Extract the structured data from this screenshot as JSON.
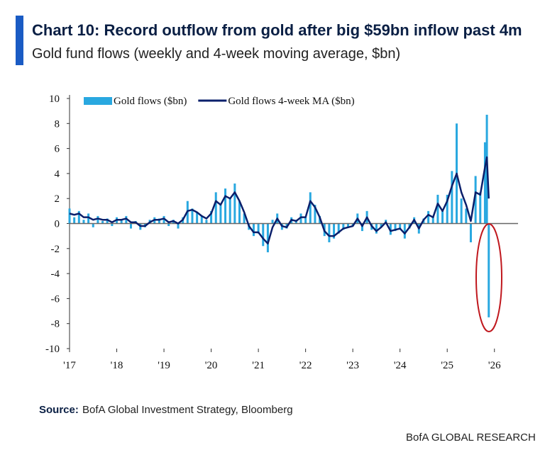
{
  "chart_data": {
    "type": "bar_line",
    "title": "Chart 10: Record outflow from gold after big $59bn inflow past 4m",
    "subtitle": "Gold fund flows (weekly and 4-week moving average, $bn)",
    "source_label": "Source:",
    "source": "BofA Global Investment Strategy, Bloomberg",
    "footer": "BofA GLOBAL RESEARCH",
    "x": [
      2017.0,
      2017.1,
      2017.2,
      2017.3,
      2017.4,
      2017.5,
      2017.6,
      2017.7,
      2017.8,
      2017.9,
      2018.0,
      2018.1,
      2018.2,
      2018.3,
      2018.4,
      2018.5,
      2018.6,
      2018.7,
      2018.8,
      2018.9,
      2019.0,
      2019.1,
      2019.2,
      2019.3,
      2019.4,
      2019.5,
      2019.6,
      2019.7,
      2019.8,
      2019.9,
      2020.0,
      2020.1,
      2020.2,
      2020.3,
      2020.4,
      2020.5,
      2020.6,
      2020.7,
      2020.8,
      2020.9,
      2021.0,
      2021.1,
      2021.2,
      2021.3,
      2021.4,
      2021.5,
      2021.6,
      2021.7,
      2021.8,
      2021.9,
      2022.0,
      2022.1,
      2022.2,
      2022.3,
      2022.4,
      2022.5,
      2022.6,
      2022.7,
      2022.8,
      2022.9,
      2023.0,
      2023.1,
      2023.2,
      2023.3,
      2023.4,
      2023.5,
      2023.6,
      2023.7,
      2023.8,
      2023.9,
      2024.0,
      2024.1,
      2024.2,
      2024.3,
      2024.4,
      2024.5,
      2024.6,
      2024.7,
      2024.8,
      2024.9,
      2025.0,
      2025.1,
      2025.2,
      2025.3,
      2025.4,
      2025.5,
      2025.6,
      2025.7,
      2025.8,
      2025.84,
      2025.88
    ],
    "series": [
      {
        "name": "Gold flows ($bn)",
        "kind": "bar",
        "color": "#29a8e0",
        "values": [
          1.2,
          0.5,
          1.0,
          0.3,
          0.8,
          -0.3,
          0.6,
          0.2,
          0.4,
          -0.2,
          0.5,
          0.3,
          0.6,
          -0.4,
          0.2,
          -0.5,
          -0.3,
          0.3,
          0.5,
          0.4,
          0.6,
          -0.2,
          0.3,
          -0.4,
          0.5,
          1.8,
          1.2,
          0.9,
          0.6,
          0.3,
          1.0,
          2.5,
          1.5,
          2.8,
          2.0,
          3.2,
          1.8,
          0.8,
          -0.5,
          -1.0,
          -0.8,
          -1.8,
          -2.3,
          0.3,
          0.8,
          -0.5,
          -0.4,
          0.5,
          0.3,
          0.8,
          0.5,
          2.5,
          1.5,
          0.6,
          -1.0,
          -1.5,
          -1.2,
          -0.8,
          -0.5,
          -0.3,
          -0.2,
          0.8,
          -0.6,
          1.0,
          -0.5,
          -0.8,
          -0.3,
          0.3,
          -0.9,
          -0.6,
          -0.5,
          -1.2,
          -0.4,
          0.5,
          -0.8,
          0.4,
          1.0,
          0.6,
          2.3,
          1.0,
          2.3,
          4.2,
          8.0,
          2.0,
          1.2,
          -1.5,
          3.8,
          2.5,
          6.5,
          8.7,
          -7.5
        ]
      },
      {
        "name": "Gold flows 4-week MA ($bn)",
        "kind": "line",
        "color": "#0a1f6b",
        "values": [
          0.8,
          0.7,
          0.8,
          0.5,
          0.5,
          0.3,
          0.4,
          0.3,
          0.3,
          0.1,
          0.3,
          0.3,
          0.4,
          0.1,
          0.1,
          -0.2,
          -0.2,
          0.1,
          0.3,
          0.3,
          0.4,
          0.1,
          0.2,
          0.0,
          0.3,
          1.0,
          1.1,
          0.9,
          0.6,
          0.4,
          0.8,
          1.8,
          1.5,
          2.2,
          2.0,
          2.5,
          1.8,
          0.9,
          -0.2,
          -0.7,
          -0.7,
          -1.2,
          -1.6,
          -0.3,
          0.4,
          -0.2,
          -0.3,
          0.3,
          0.2,
          0.5,
          0.5,
          1.8,
          1.3,
          0.5,
          -0.6,
          -1.0,
          -1.0,
          -0.7,
          -0.4,
          -0.3,
          -0.2,
          0.4,
          -0.2,
          0.5,
          -0.2,
          -0.6,
          -0.3,
          0.1,
          -0.6,
          -0.5,
          -0.4,
          -0.8,
          -0.3,
          0.3,
          -0.4,
          0.3,
          0.7,
          0.5,
          1.6,
          1.0,
          1.8,
          3.0,
          4.0,
          2.5,
          1.5,
          0.2,
          2.5,
          2.3,
          4.5,
          5.3,
          2.0
        ]
      }
    ],
    "xlim": [
      2017,
      2026.5
    ],
    "xticks": [
      {
        "value": 2017,
        "label": "'17"
      },
      {
        "value": 2018,
        "label": "'18"
      },
      {
        "value": 2019,
        "label": "'19"
      },
      {
        "value": 2020,
        "label": "'20"
      },
      {
        "value": 2021,
        "label": "'21"
      },
      {
        "value": 2022,
        "label": "'22"
      },
      {
        "value": 2023,
        "label": "'23"
      },
      {
        "value": 2024,
        "label": "'24"
      },
      {
        "value": 2025,
        "label": "'25"
      },
      {
        "value": 2026,
        "label": "'26"
      }
    ],
    "ylim": [
      -10,
      10
    ],
    "yticks": [
      -10,
      -8,
      -6,
      -4,
      -2,
      0,
      2,
      4,
      6,
      8,
      10
    ],
    "grid": false
  }
}
